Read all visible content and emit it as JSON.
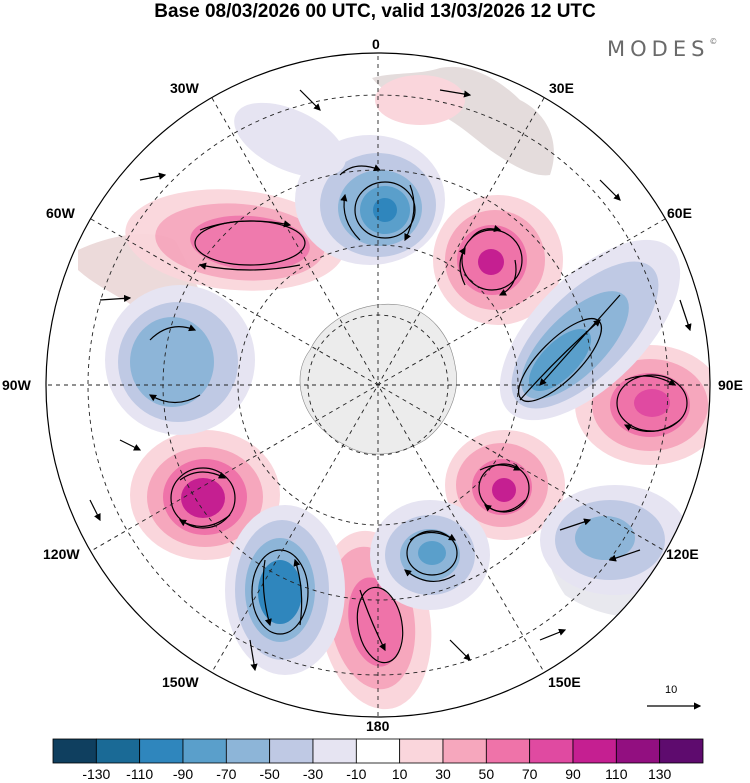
{
  "header": {
    "title": "Base 08/03/2026 00 UTC, valid 13/03/2026 12 UTC",
    "brand": "MODES",
    "brand_mark": "©"
  },
  "map": {
    "projection": "south-polar-stereographic",
    "longitude_labels": {
      "lon_0": "0",
      "lon_30e": "30E",
      "lon_60e": "60E",
      "lon_90e": "90E",
      "lon_120e": "120E",
      "lon_150e": "150E",
      "lon_180": "180",
      "lon_150w": "150W",
      "lon_120w": "120W",
      "lon_90w": "90W",
      "lon_60w": "60W",
      "lon_30w": "30W"
    },
    "reference_vector_label": "10"
  },
  "colorbar": {
    "labels": [
      "-130",
      "-110",
      "-90",
      "-70",
      "-50",
      "-30",
      "-10",
      "10",
      "30",
      "50",
      "70",
      "90",
      "110",
      "130"
    ],
    "colors": [
      "#0f3f5f",
      "#1a6a96",
      "#2f86bd",
      "#5a9fcb",
      "#8db5d8",
      "#bfc9e4",
      "#e6e4f2",
      "#ffffff",
      "#fad6dc",
      "#f6a7bd",
      "#ef73a9",
      "#e04aa1",
      "#c51f91",
      "#920f80",
      "#5e0b6e"
    ]
  }
}
